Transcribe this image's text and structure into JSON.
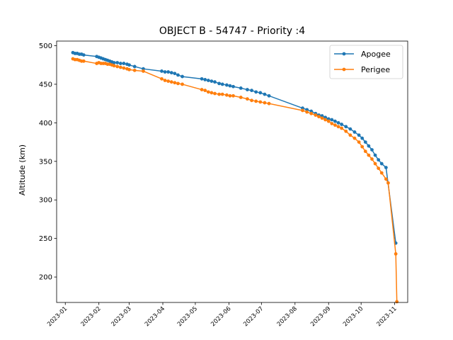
{
  "chart_data": {
    "type": "line",
    "title": "OBJECT B - 54747 - Priority :4",
    "xlabel": "",
    "ylabel": "Altitude (km)",
    "xlim": [
      "2022-12-24",
      "2023-11-13"
    ],
    "ylim": [
      167,
      506
    ],
    "x_ticks": [
      "2023-01",
      "2023-02",
      "2023-03",
      "2023-04",
      "2023-05",
      "2023-06",
      "2023-07",
      "2023-08",
      "2023-09",
      "2023-10",
      "2023-11"
    ],
    "y_ticks": [
      200,
      250,
      300,
      350,
      400,
      450,
      500
    ],
    "grid": false,
    "legend_position": "top-right",
    "series": [
      {
        "name": "Apogee",
        "color": "#1f77b4",
        "points": [
          [
            "2023-01-08",
            491
          ],
          [
            "2023-01-10",
            490
          ],
          [
            "2023-01-12",
            490
          ],
          [
            "2023-01-14",
            489
          ],
          [
            "2023-01-16",
            489
          ],
          [
            "2023-01-18",
            488
          ],
          [
            "2023-01-30",
            486
          ],
          [
            "2023-02-01",
            485
          ],
          [
            "2023-02-03",
            484
          ],
          [
            "2023-02-05",
            483
          ],
          [
            "2023-02-07",
            482
          ],
          [
            "2023-02-09",
            481
          ],
          [
            "2023-02-11",
            480
          ],
          [
            "2023-02-13",
            479
          ],
          [
            "2023-02-15",
            478
          ],
          [
            "2023-02-18",
            478
          ],
          [
            "2023-02-21",
            477
          ],
          [
            "2023-02-24",
            477
          ],
          [
            "2023-02-27",
            476
          ],
          [
            "2023-03-01",
            475
          ],
          [
            "2023-03-06",
            473
          ],
          [
            "2023-03-14",
            470
          ],
          [
            "2023-03-31",
            467
          ],
          [
            "2023-04-03",
            466
          ],
          [
            "2023-04-06",
            466
          ],
          [
            "2023-04-09",
            465
          ],
          [
            "2023-04-12",
            464
          ],
          [
            "2023-04-15",
            462
          ],
          [
            "2023-04-19",
            460
          ],
          [
            "2023-05-07",
            457
          ],
          [
            "2023-05-10",
            456
          ],
          [
            "2023-05-13",
            455
          ],
          [
            "2023-05-16",
            454
          ],
          [
            "2023-05-19",
            453
          ],
          [
            "2023-05-23",
            451
          ],
          [
            "2023-05-26",
            450
          ],
          [
            "2023-05-30",
            449
          ],
          [
            "2023-06-02",
            448
          ],
          [
            "2023-06-05",
            447
          ],
          [
            "2023-06-12",
            445
          ],
          [
            "2023-06-18",
            443
          ],
          [
            "2023-06-22",
            442
          ],
          [
            "2023-06-26",
            440
          ],
          [
            "2023-06-30",
            439
          ],
          [
            "2023-07-04",
            437
          ],
          [
            "2023-07-08",
            435
          ],
          [
            "2023-08-08",
            419
          ],
          [
            "2023-08-12",
            417
          ],
          [
            "2023-08-16",
            415
          ],
          [
            "2023-08-20",
            412
          ],
          [
            "2023-08-23",
            410
          ],
          [
            "2023-08-26",
            409
          ],
          [
            "2023-08-29",
            407
          ],
          [
            "2023-09-01",
            405
          ],
          [
            "2023-09-04",
            404
          ],
          [
            "2023-09-07",
            402
          ],
          [
            "2023-09-10",
            400
          ],
          [
            "2023-09-13",
            398
          ],
          [
            "2023-09-17",
            395
          ],
          [
            "2023-09-21",
            392
          ],
          [
            "2023-09-25",
            388
          ],
          [
            "2023-09-29",
            384
          ],
          [
            "2023-10-02",
            380
          ],
          [
            "2023-10-05",
            375
          ],
          [
            "2023-10-08",
            370
          ],
          [
            "2023-10-11",
            365
          ],
          [
            "2023-10-14",
            358
          ],
          [
            "2023-10-17",
            352
          ],
          [
            "2023-10-20",
            347
          ],
          [
            "2023-10-24",
            342
          ],
          [
            "2023-11-02",
            244
          ]
        ]
      },
      {
        "name": "Perigee",
        "color": "#ff7f0e",
        "points": [
          [
            "2023-01-08",
            483
          ],
          [
            "2023-01-10",
            482
          ],
          [
            "2023-01-12",
            482
          ],
          [
            "2023-01-14",
            481
          ],
          [
            "2023-01-16",
            480
          ],
          [
            "2023-01-18",
            480
          ],
          [
            "2023-01-30",
            477
          ],
          [
            "2023-02-01",
            478
          ],
          [
            "2023-02-03",
            477
          ],
          [
            "2023-02-05",
            477
          ],
          [
            "2023-02-07",
            477
          ],
          [
            "2023-02-09",
            476
          ],
          [
            "2023-02-11",
            476
          ],
          [
            "2023-02-13",
            475
          ],
          [
            "2023-02-15",
            474
          ],
          [
            "2023-02-18",
            473
          ],
          [
            "2023-02-21",
            472
          ],
          [
            "2023-02-24",
            471
          ],
          [
            "2023-02-27",
            470
          ],
          [
            "2023-03-01",
            469
          ],
          [
            "2023-03-06",
            468
          ],
          [
            "2023-03-14",
            467
          ],
          [
            "2023-03-31",
            457
          ],
          [
            "2023-04-03",
            455
          ],
          [
            "2023-04-06",
            454
          ],
          [
            "2023-04-09",
            453
          ],
          [
            "2023-04-12",
            452
          ],
          [
            "2023-04-15",
            451
          ],
          [
            "2023-04-19",
            450
          ],
          [
            "2023-05-07",
            443
          ],
          [
            "2023-05-10",
            442
          ],
          [
            "2023-05-13",
            440
          ],
          [
            "2023-05-16",
            439
          ],
          [
            "2023-05-19",
            438
          ],
          [
            "2023-05-23",
            437
          ],
          [
            "2023-05-26",
            437
          ],
          [
            "2023-05-30",
            436
          ],
          [
            "2023-06-02",
            435
          ],
          [
            "2023-06-05",
            435
          ],
          [
            "2023-06-12",
            433
          ],
          [
            "2023-06-18",
            431
          ],
          [
            "2023-06-22",
            429
          ],
          [
            "2023-06-26",
            428
          ],
          [
            "2023-06-30",
            427
          ],
          [
            "2023-07-04",
            426
          ],
          [
            "2023-07-08",
            425
          ],
          [
            "2023-08-08",
            416
          ],
          [
            "2023-08-12",
            414
          ],
          [
            "2023-08-16",
            412
          ],
          [
            "2023-08-20",
            410
          ],
          [
            "2023-08-23",
            408
          ],
          [
            "2023-08-26",
            406
          ],
          [
            "2023-08-29",
            404
          ],
          [
            "2023-09-01",
            402
          ],
          [
            "2023-09-04",
            399
          ],
          [
            "2023-09-07",
            397
          ],
          [
            "2023-09-10",
            395
          ],
          [
            "2023-09-13",
            393
          ],
          [
            "2023-09-17",
            389
          ],
          [
            "2023-09-21",
            384
          ],
          [
            "2023-09-25",
            380
          ],
          [
            "2023-09-29",
            375
          ],
          [
            "2023-10-02",
            369
          ],
          [
            "2023-10-05",
            363
          ],
          [
            "2023-10-08",
            358
          ],
          [
            "2023-10-11",
            353
          ],
          [
            "2023-10-14",
            347
          ],
          [
            "2023-10-17",
            341
          ],
          [
            "2023-10-20",
            335
          ],
          [
            "2023-10-24",
            327
          ],
          [
            "2023-10-26",
            322
          ],
          [
            "2023-11-02",
            230
          ],
          [
            "2023-11-03",
            168
          ]
        ]
      }
    ]
  }
}
